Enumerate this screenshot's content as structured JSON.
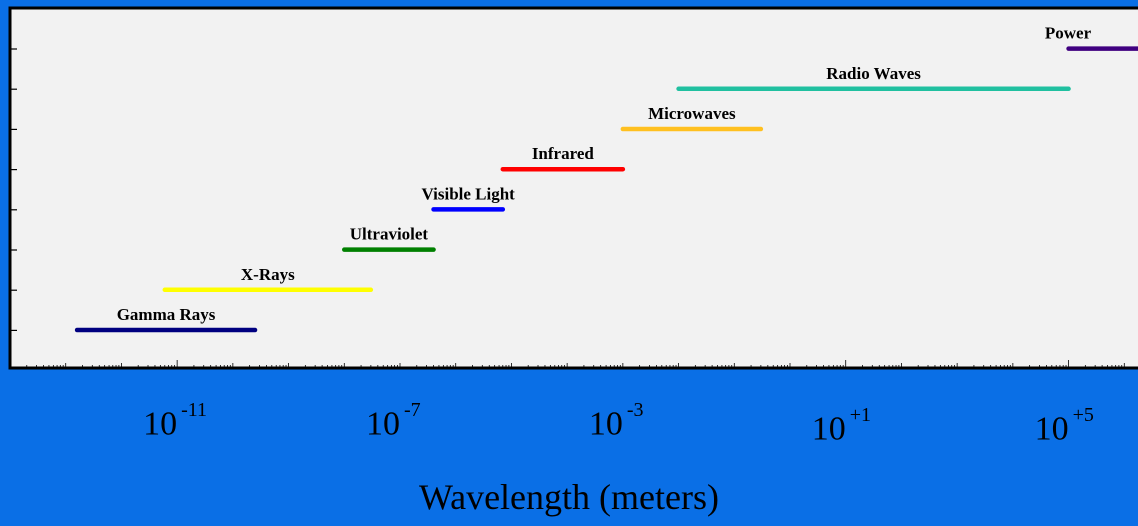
{
  "chart_data": {
    "type": "range-bar",
    "title": "",
    "xlabel": "Wavelength (meters)",
    "ylabel": "",
    "x_scale": "log10",
    "xlim": [
      1e-14,
      10000000.0
    ],
    "x_ticks": [
      {
        "value": 1e-11,
        "base": "10",
        "exponent": "-11"
      },
      {
        "value": 1e-07,
        "base": "10",
        "exponent": "-7"
      },
      {
        "value": 0.001,
        "base": "10",
        "exponent": "-3"
      },
      {
        "value": 10.0,
        "base": "10",
        "exponent": "+1"
      },
      {
        "value": 100000.0,
        "base": "10",
        "exponent": "+5"
      }
    ],
    "grid": false,
    "series": [
      {
        "name": "Gamma Rays",
        "x_start": 1.6e-13,
        "x_end": 2.5e-10,
        "color": "#000080"
      },
      {
        "name": "X-Rays",
        "x_start": 6e-12,
        "x_end": 3e-08,
        "color": "#ffff00"
      },
      {
        "name": "Ultraviolet",
        "x_start": 1e-08,
        "x_end": 4e-07,
        "color": "#008000"
      },
      {
        "name": "Visible Light",
        "x_start": 4e-07,
        "x_end": 7e-06,
        "color": "#0000ff"
      },
      {
        "name": "Infrared",
        "x_start": 7e-06,
        "x_end": 0.001,
        "color": "#ff0000"
      },
      {
        "name": "Microwaves",
        "x_start": 0.001,
        "x_end": 0.3,
        "color": "#ffc020"
      },
      {
        "name": "Radio Waves",
        "x_start": 0.01,
        "x_end": 100000.0,
        "color": "#20c0a0"
      },
      {
        "name": "Power",
        "x_start": 100000.0,
        "x_end": 10000000.0,
        "color": "#400080"
      }
    ]
  },
  "colors": {
    "background": "#0a6fe6",
    "plot_area": "#f2f2f2",
    "axis": "#000000"
  }
}
